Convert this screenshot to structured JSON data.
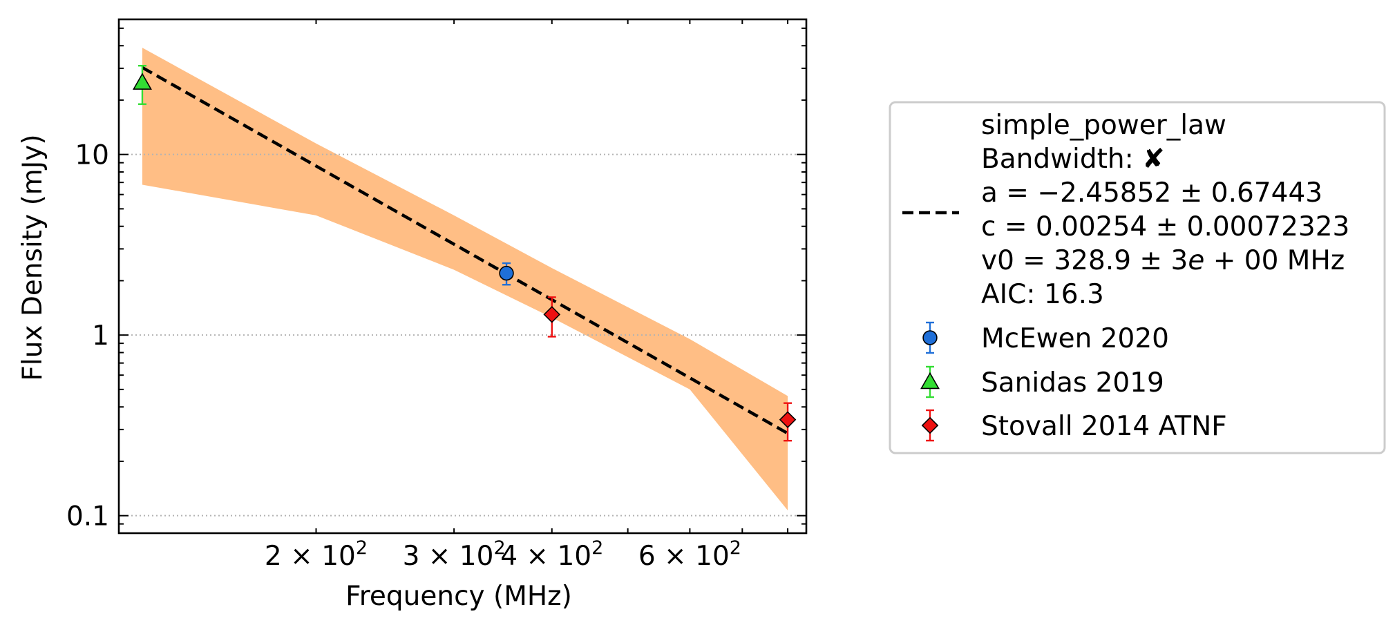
{
  "chart_data": {
    "type": "scatter",
    "xscale": "log",
    "yscale": "log",
    "xlabel": "Frequency (MHz)",
    "ylabel": "Flux Density (mJy)",
    "xlim": [
      112,
      845
    ],
    "ylim": [
      0.08,
      56
    ],
    "grid": "y-major dotted",
    "legend_position": "outside-right",
    "xticks": [
      {
        "value": 200,
        "mant": "2",
        "exp": "2"
      },
      {
        "value": 300,
        "mant": "3",
        "exp": "2"
      },
      {
        "value": 400,
        "mant": "4",
        "exp": "2"
      },
      {
        "value": 600,
        "mant": "6",
        "exp": "2"
      }
    ],
    "yticks": [
      {
        "value": 0.1,
        "label": "0.1"
      },
      {
        "value": 1,
        "label": "1"
      },
      {
        "value": 10,
        "label": "10"
      }
    ],
    "fit": {
      "model": "simple_power_law",
      "bandwidth_label": "Bandwidth:",
      "bandwidth_symbol": "✘",
      "param_a": "a = −2.45852 ± 0.67443",
      "param_c": "c = 0.00254 ± 0.00072323",
      "param_v0_prefix": "v0 = 328.9 ± 3",
      "param_v0_e": "e",
      "param_v0_suffix": " + 00 MHz",
      "aic": "AIC: 16.3",
      "a": -2.45852,
      "c": 0.00254,
      "v0": 328.9,
      "x_range": [
        120,
        800
      ],
      "line_color": "#000000",
      "band_color": "#ffbe85",
      "band_upper": [
        [
          120,
          39
        ],
        [
          200,
          11.5
        ],
        [
          300,
          4.6
        ],
        [
          400,
          2.35
        ],
        [
          600,
          0.95
        ],
        [
          800,
          0.46
        ]
      ],
      "band_lower": [
        [
          120,
          6.8
        ],
        [
          200,
          4.6
        ],
        [
          300,
          2.3
        ],
        [
          400,
          1.25
        ],
        [
          600,
          0.5
        ],
        [
          800,
          0.107
        ]
      ]
    },
    "series": [
      {
        "name": "McEwen 2020",
        "marker": "circle",
        "color": "#1f6fd8",
        "points": [
          {
            "x": 350,
            "y": 2.2,
            "yerr_low": 1.9,
            "yerr_high": 2.5
          }
        ]
      },
      {
        "name": "Sanidas 2019",
        "marker": "triangle",
        "color": "#33dd33",
        "points": [
          {
            "x": 120,
            "y": 25,
            "yerr_low": 19,
            "yerr_high": 31
          }
        ]
      },
      {
        "name": "Stovall 2014 ATNF",
        "marker": "diamond",
        "color": "#ee1111",
        "points": [
          {
            "x": 400,
            "y": 1.3,
            "yerr_low": 0.98,
            "yerr_high": 1.62
          },
          {
            "x": 800,
            "y": 0.34,
            "yerr_low": 0.26,
            "yerr_high": 0.42
          }
        ]
      }
    ]
  }
}
